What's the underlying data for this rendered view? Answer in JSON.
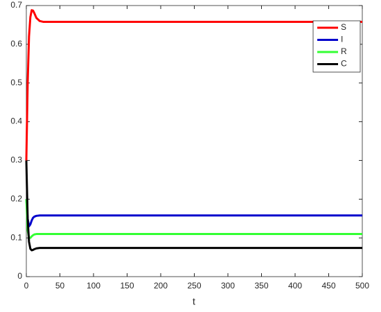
{
  "chart_data": {
    "type": "line",
    "xlabel": "t",
    "x": [
      0,
      2,
      4,
      6,
      8,
      10,
      12,
      15,
      20,
      25,
      30,
      50,
      100,
      200,
      300,
      400,
      500
    ],
    "series": [
      {
        "name": "S",
        "color": "#ff0000",
        "values": [
          0.3,
          0.5,
          0.62,
          0.67,
          0.688,
          0.687,
          0.68,
          0.668,
          0.66,
          0.658,
          0.658,
          0.658,
          0.658,
          0.658,
          0.658,
          0.658,
          0.658
        ]
      },
      {
        "name": "I",
        "color": "#0000cc",
        "values": [
          0.2,
          0.15,
          0.13,
          0.135,
          0.145,
          0.152,
          0.155,
          0.157,
          0.158,
          0.158,
          0.158,
          0.158,
          0.158,
          0.158,
          0.158,
          0.158,
          0.158
        ]
      },
      {
        "name": "R",
        "color": "#33ff33",
        "values": [
          0.2,
          0.12,
          0.1,
          0.1,
          0.104,
          0.107,
          0.109,
          0.11,
          0.11,
          0.11,
          0.11,
          0.11,
          0.11,
          0.11,
          0.11,
          0.11,
          0.11
        ]
      },
      {
        "name": "C",
        "color": "#000000",
        "values": [
          0.3,
          0.15,
          0.09,
          0.072,
          0.068,
          0.069,
          0.071,
          0.073,
          0.074,
          0.074,
          0.074,
          0.074,
          0.074,
          0.074,
          0.074,
          0.074,
          0.074
        ]
      }
    ],
    "xlim": [
      0,
      500
    ],
    "xticks": [
      0,
      50,
      100,
      150,
      200,
      250,
      300,
      350,
      400,
      450,
      500
    ],
    "ylim": [
      0,
      0.7
    ],
    "yticks": [
      0,
      0.1,
      0.2,
      0.3,
      0.4,
      0.5,
      0.6,
      0.7
    ],
    "grid": false,
    "legend": "northeast"
  }
}
